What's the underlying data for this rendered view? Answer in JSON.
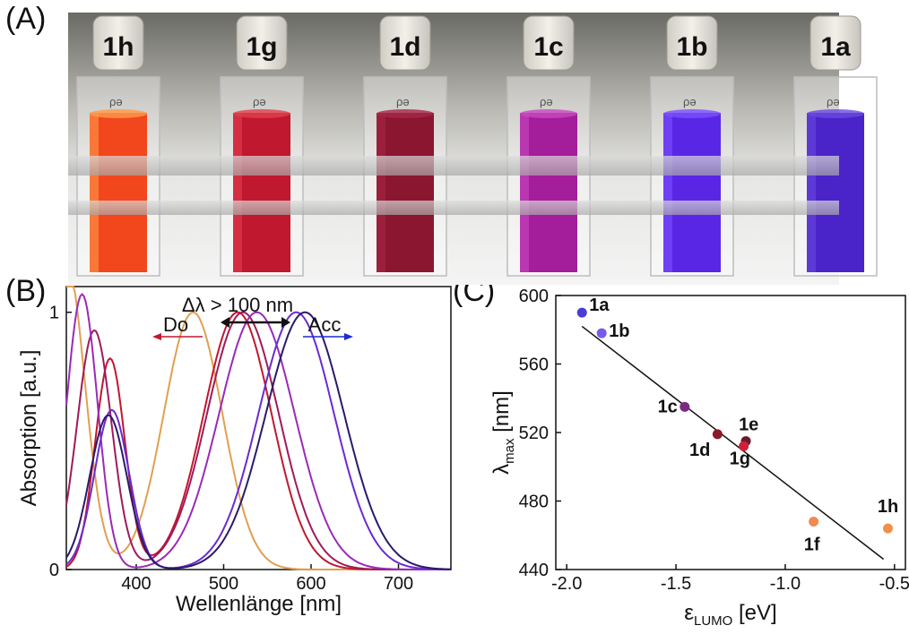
{
  "panels": {
    "a": "(A)",
    "b": "(B)",
    "c": "(C)"
  },
  "photo": {
    "cuvettes": [
      {
        "label": "1h",
        "liquid": "#f2461c",
        "tint": "#ff9a4a"
      },
      {
        "label": "1g",
        "liquid": "#c0182e",
        "tint": "#e0404e"
      },
      {
        "label": "1d",
        "liquid": "#8a1630",
        "tint": "#a82848"
      },
      {
        "label": "1c",
        "liquid": "#a41d9a",
        "tint": "#c84ac0"
      },
      {
        "label": "1b",
        "liquid": "#5a26e6",
        "tint": "#7a50ff"
      },
      {
        "label": "1a",
        "liquid": "#4a24c8",
        "tint": "#6a48e0"
      }
    ],
    "cap_text": "ρə"
  },
  "chart_data": [
    {
      "type": "line",
      "xlabel": "Wellenlänge [nm]",
      "ylabel": "Absorption [a.u.]",
      "xlim": [
        320,
        760
      ],
      "ylim": [
        0,
        1.1
      ],
      "xticks": [
        "400",
        "500",
        "600",
        "700"
      ],
      "yticks": [
        "0",
        "1"
      ],
      "annotations": {
        "delta": "Δλ > 100 nm",
        "donor": "Do",
        "acceptor": "Acc"
      },
      "colors": {
        "donor_arrow": "#c0182e",
        "acceptor_arrow": "#1a2ad0"
      },
      "series": [
        {
          "color": "#e0a050",
          "peak": 465,
          "width": 45,
          "uv_peak": 320,
          "uv_height": 1.2,
          "uv_width": 30
        },
        {
          "color": "#c0182e",
          "peak": 516,
          "width": 52,
          "uv_peak": 370,
          "uv_height": 0.82,
          "uv_width": 24
        },
        {
          "color": "#a01a5a",
          "peak": 522,
          "width": 55,
          "uv_peak": 352,
          "uv_height": 0.93,
          "uv_width": 28
        },
        {
          "color": "#9a2ab8",
          "peak": 538,
          "width": 58,
          "uv_peak": 338,
          "uv_height": 1.07,
          "uv_width": 25
        },
        {
          "color": "#6a2ad0",
          "peak": 583,
          "width": 58,
          "uv_peak": 372,
          "uv_height": 0.62,
          "uv_width": 28
        },
        {
          "color": "#2a1a6a",
          "peak": 593,
          "width": 60,
          "uv_peak": 368,
          "uv_height": 0.6,
          "uv_width": 30
        }
      ]
    },
    {
      "type": "scatter",
      "xlabel": "εLUMO [eV]",
      "ylabel": "λmax [nm]",
      "xlim": [
        -2.05,
        -0.45
      ],
      "ylim": [
        440,
        600
      ],
      "xticks": [
        "-2.0",
        "-1.5",
        "-1.0",
        "-0.5"
      ],
      "yticks": [
        "440",
        "480",
        "520",
        "560",
        "600"
      ],
      "fit": {
        "x": [
          -1.93,
          -0.55
        ],
        "y": [
          582,
          446
        ]
      },
      "points": [
        {
          "label": "1a",
          "x": -1.93,
          "y": 590,
          "color": "#4a3ad8"
        },
        {
          "label": "1b",
          "x": -1.84,
          "y": 578,
          "color": "#7a5ae8"
        },
        {
          "label": "1c",
          "x": -1.46,
          "y": 535,
          "color": "#7a2a80"
        },
        {
          "label": "1d",
          "x": -1.31,
          "y": 519,
          "color": "#8a1a2a"
        },
        {
          "label": "1e",
          "x": -1.18,
          "y": 515,
          "color": "#6a1a2a"
        },
        {
          "label": "1g",
          "x": -1.19,
          "y": 512,
          "color": "#d02038"
        },
        {
          "label": "1f",
          "x": -0.87,
          "y": 468,
          "color": "#f08a50"
        },
        {
          "label": "1h",
          "x": -0.53,
          "y": 464,
          "color": "#f0904a"
        }
      ]
    }
  ]
}
